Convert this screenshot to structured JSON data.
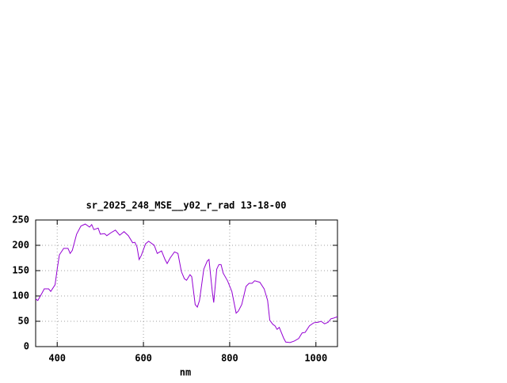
{
  "chart_data": {
    "type": "line",
    "title": "sr_2025_248_MSE__y02_r_rad 13-18-00",
    "x_label": "nm",
    "x": [
      350,
      355,
      365,
      370,
      380,
      385,
      395,
      400,
      405,
      415,
      425,
      430,
      435,
      445,
      455,
      465,
      475,
      480,
      485,
      495,
      500,
      510,
      515,
      525,
      535,
      545,
      555,
      565,
      575,
      580,
      585,
      590,
      595,
      605,
      612,
      625,
      632,
      642,
      650,
      655,
      662,
      672,
      680,
      688,
      695,
      700,
      708,
      712,
      720,
      725,
      730,
      740,
      748,
      752,
      760,
      763,
      770,
      775,
      780,
      785,
      795,
      805,
      815,
      820,
      828,
      838,
      845,
      852,
      858,
      870,
      880,
      888,
      893,
      900,
      905,
      910,
      915,
      925,
      930,
      940,
      950,
      960,
      968,
      975,
      985,
      995,
      1005,
      1012,
      1020,
      1028,
      1035,
      1040,
      1050
    ],
    "values": [
      94,
      91,
      106,
      114,
      114,
      109,
      122,
      153,
      181,
      194,
      194,
      184,
      190,
      222,
      238,
      242,
      236,
      241,
      231,
      234,
      222,
      223,
      219,
      225,
      230,
      220,
      227,
      219,
      205,
      206,
      197,
      172,
      180,
      203,
      208,
      200,
      184,
      189,
      172,
      164,
      175,
      187,
      184,
      148,
      134,
      131,
      142,
      138,
      83,
      78,
      91,
      153,
      169,
      172,
      106,
      87,
      153,
      162,
      162,
      145,
      130,
      109,
      66,
      70,
      83,
      119,
      125,
      125,
      130,
      127,
      114,
      91,
      52,
      44,
      41,
      34,
      38,
      17,
      9,
      8,
      11,
      16,
      27,
      28,
      41,
      47,
      48,
      50,
      45,
      48,
      55,
      56,
      59
    ],
    "color": "#9400d3",
    "xlim": [
      350,
      1050
    ],
    "xticks": [
      400,
      600,
      800,
      1000
    ],
    "ylim": [
      0,
      250
    ],
    "yticks": [
      0,
      50,
      100,
      150,
      200,
      250
    ],
    "grid": true
  }
}
